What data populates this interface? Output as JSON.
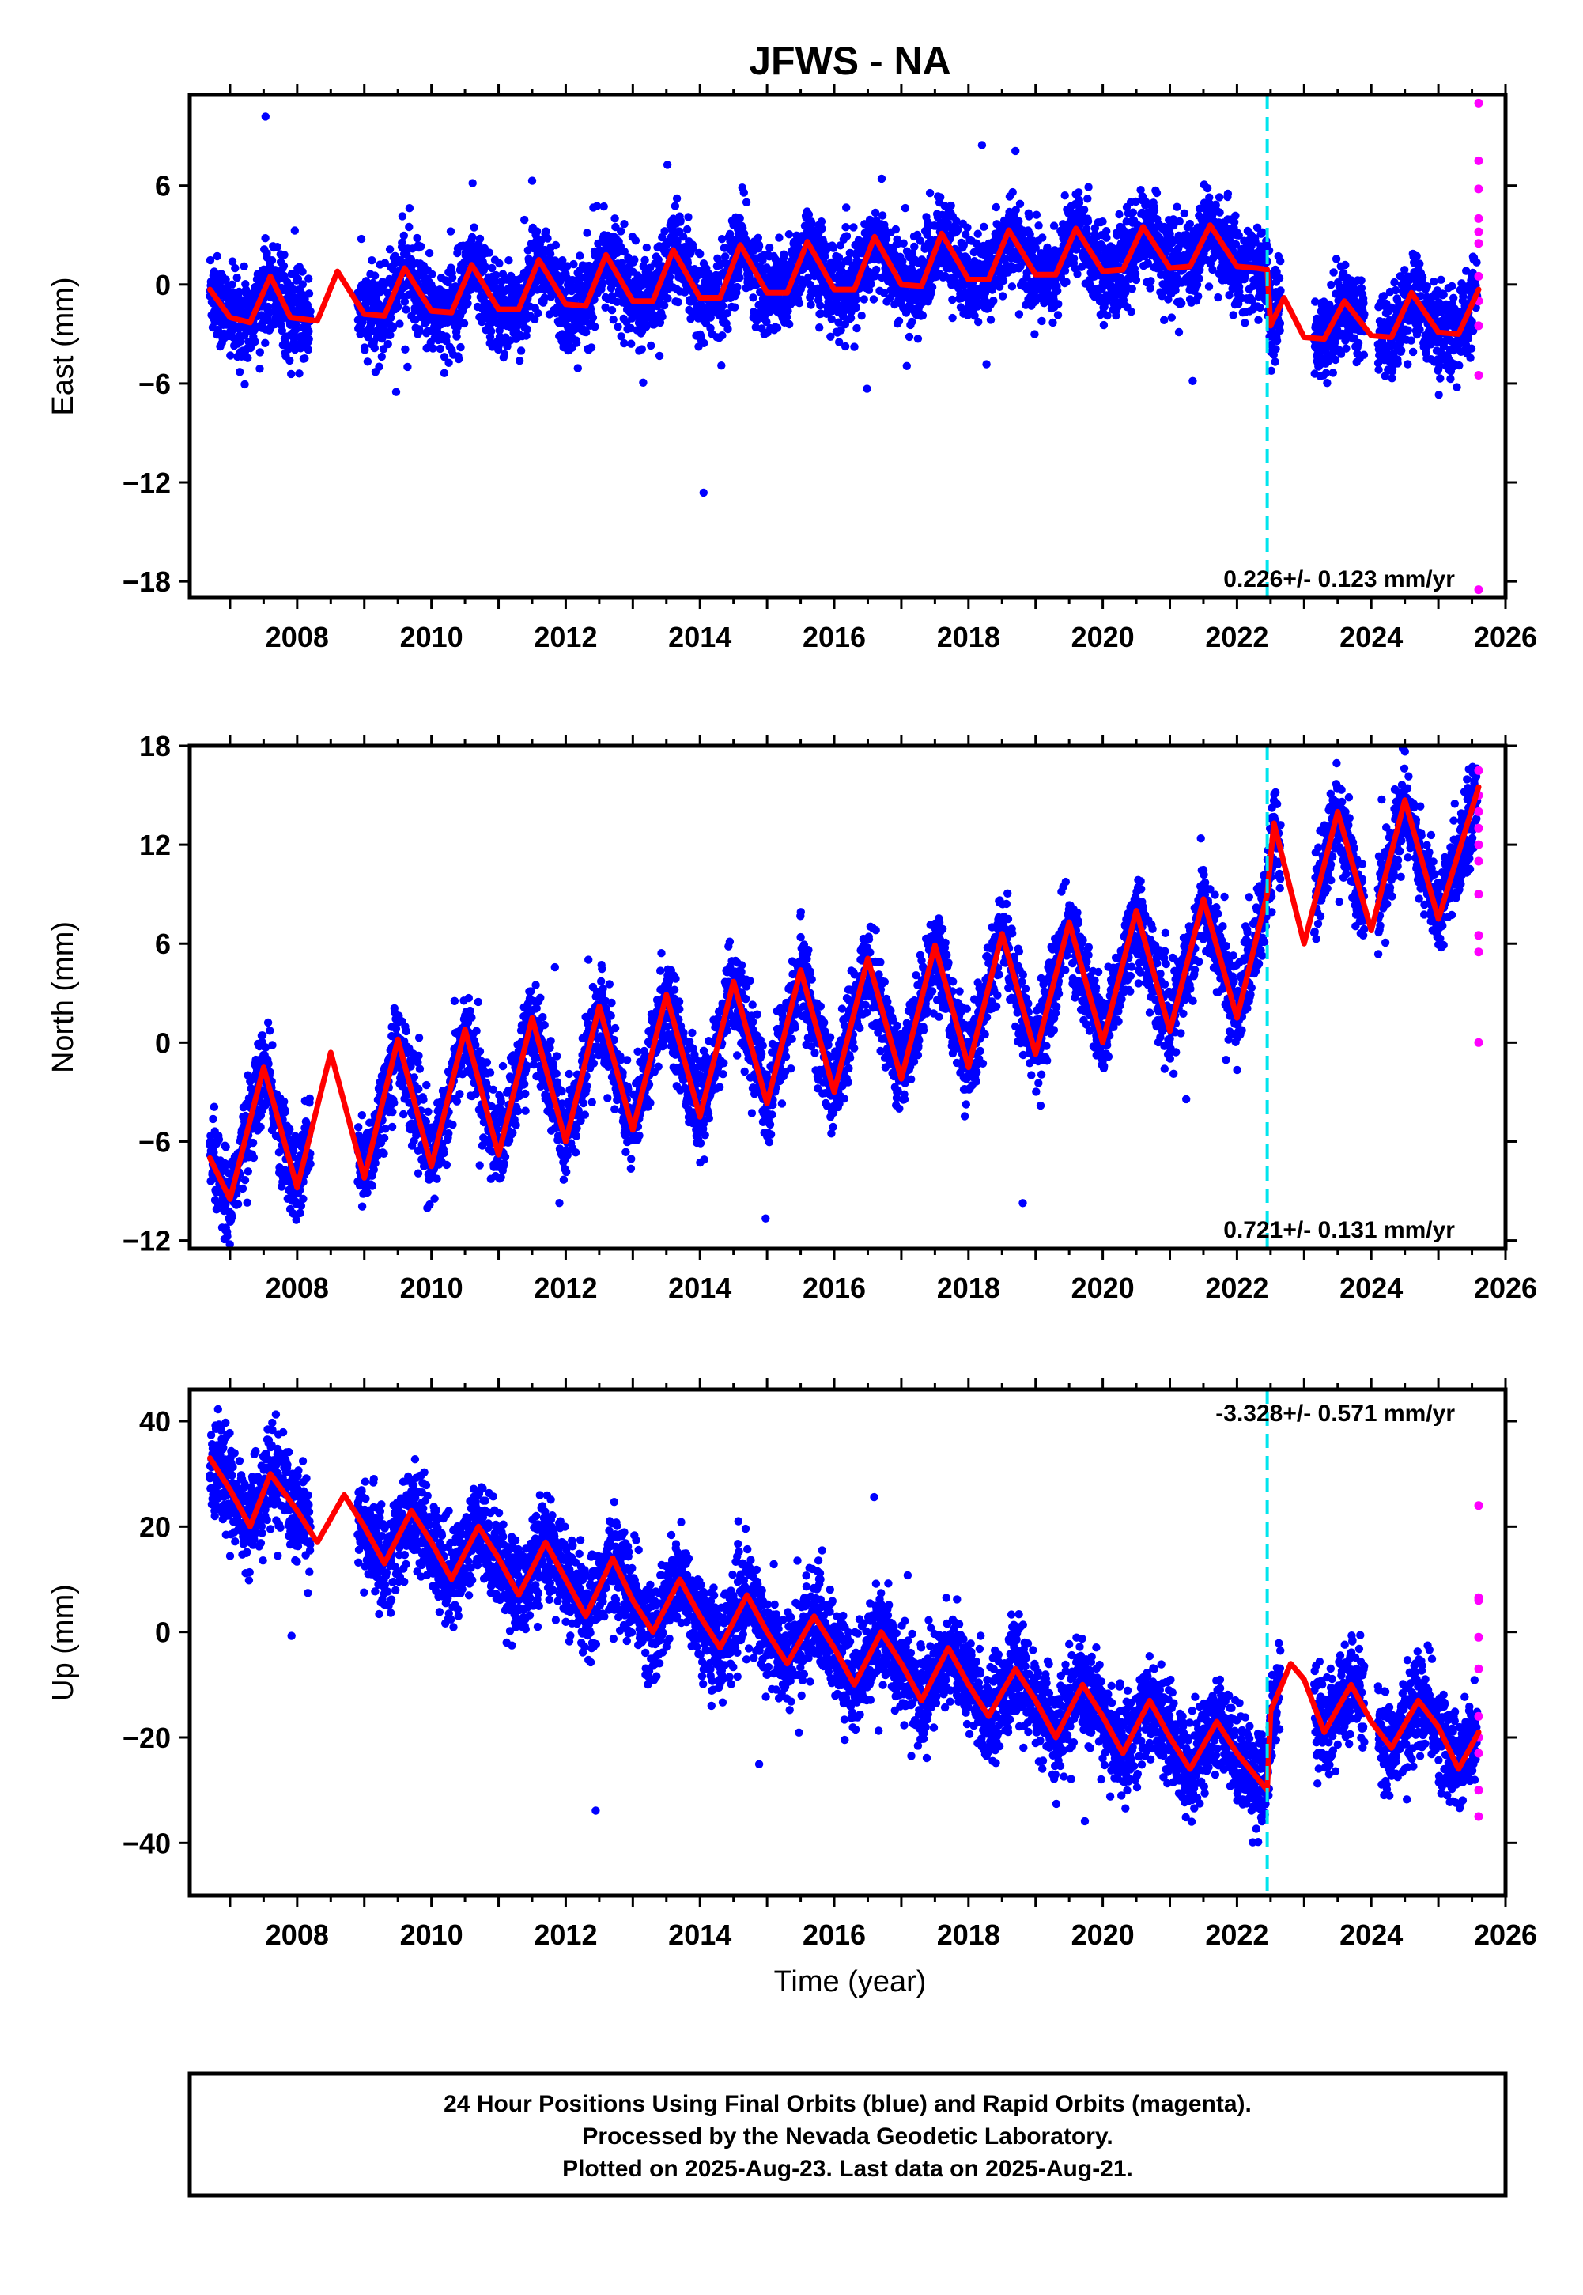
{
  "title": "JFWS - NA",
  "xlabel": "Time (year)",
  "colors": {
    "final": "#0000ff",
    "rapid": "#ff00ff",
    "model": "#ff0000",
    "offset": "#00e5ee"
  },
  "chart_data": [
    {
      "type": "scatter",
      "component": "east",
      "ylabel": "East (mm)",
      "xlim": [
        2006.4,
        2026.0
      ],
      "ylim": [
        -19,
        11.5
      ],
      "yticks": [
        6,
        0,
        -6,
        -12,
        -18
      ],
      "xticks": [
        2008,
        2010,
        2012,
        2014,
        2016,
        2018,
        2020,
        2022,
        2024,
        2026
      ],
      "rate_label": "0.226+/- 0.123 mm/yr",
      "offset_line_x": 2022.45,
      "data_gaps": [
        [
          2008.2,
          2008.9
        ],
        [
          2022.65,
          2023.15
        ],
        [
          2023.9,
          2024.1
        ]
      ],
      "model_series": {
        "name": "",
        "x": [
          2006.7,
          2007.0,
          2007.3,
          2007.6,
          2007.9,
          2008.3,
          2008.6,
          2009.0,
          2009.3,
          2009.6,
          2010.0,
          2010.3,
          2010.6,
          2011.0,
          2011.3,
          2011.6,
          2012.0,
          2012.3,
          2012.6,
          2013.0,
          2013.3,
          2013.6,
          2014.0,
          2014.3,
          2014.6,
          2015.0,
          2015.3,
          2015.6,
          2016.0,
          2016.3,
          2016.6,
          2017.0,
          2017.3,
          2017.6,
          2018.0,
          2018.3,
          2018.6,
          2019.0,
          2019.3,
          2019.6,
          2020.0,
          2020.3,
          2020.6,
          2021.0,
          2021.3,
          2021.6,
          2022.0,
          2022.3,
          2022.45,
          2022.5,
          2022.7,
          2023.0,
          2023.3,
          2023.6,
          2024.0,
          2024.3,
          2024.6,
          2025.0,
          2025.3,
          2025.6
        ],
        "y": [
          -0.3,
          -2.0,
          -2.3,
          0.5,
          -2.0,
          -2.2,
          0.8,
          -1.8,
          -1.9,
          1.0,
          -1.6,
          -1.7,
          1.2,
          -1.5,
          -1.5,
          1.5,
          -1.2,
          -1.3,
          1.8,
          -1.0,
          -1.0,
          2.1,
          -0.8,
          -0.8,
          2.4,
          -0.5,
          -0.5,
          2.6,
          -0.3,
          -0.3,
          2.9,
          0.0,
          -0.1,
          3.1,
          0.3,
          0.3,
          3.3,
          0.6,
          0.6,
          3.4,
          0.8,
          0.9,
          3.5,
          1.0,
          1.1,
          3.6,
          1.1,
          1.0,
          0.9,
          -2.5,
          -0.8,
          -3.2,
          -3.3,
          -1.0,
          -3.1,
          -3.2,
          -0.5,
          -2.9,
          -3.0,
          -0.3
        ]
      },
      "rapid_points": {
        "x": [
          2025.6,
          2025.6,
          2025.6,
          2025.6,
          2025.6,
          2025.6,
          2025.6,
          2025.6,
          2025.6,
          2025.6,
          2025.6
        ],
        "y": [
          11,
          7.5,
          5.8,
          4.0,
          2.5,
          0.5,
          -1.0,
          -2.5,
          -5.5,
          -18.5,
          3.2
        ]
      }
    },
    {
      "type": "scatter",
      "component": "north",
      "ylabel": "North (mm)",
      "xlim": [
        2006.4,
        2026.0
      ],
      "ylim": [
        -12.5,
        18
      ],
      "yticks": [
        18,
        12,
        6,
        0,
        -6,
        -12
      ],
      "xticks": [
        2008,
        2010,
        2012,
        2014,
        2016,
        2018,
        2020,
        2022,
        2024,
        2026
      ],
      "rate_label": "0.721+/- 0.131 mm/yr",
      "offset_line_x": 2022.45,
      "data_gaps": [
        [
          2008.2,
          2008.9
        ],
        [
          2022.65,
          2023.15
        ],
        [
          2023.9,
          2024.1
        ]
      ],
      "model_series": {
        "name": "",
        "x": [
          2006.7,
          2007.0,
          2007.5,
          2008.0,
          2008.5,
          2009.0,
          2009.5,
          2010.0,
          2010.5,
          2011.0,
          2011.5,
          2012.0,
          2012.5,
          2013.0,
          2013.5,
          2014.0,
          2014.5,
          2015.0,
          2015.5,
          2016.0,
          2016.5,
          2017.0,
          2017.5,
          2018.0,
          2018.5,
          2019.0,
          2019.5,
          2020.0,
          2020.5,
          2021.0,
          2021.5,
          2022.0,
          2022.45,
          2022.55,
          2023.0,
          2023.5,
          2024.0,
          2024.5,
          2025.0,
          2025.6
        ],
        "y": [
          -7.0,
          -9.5,
          -1.5,
          -8.8,
          -0.6,
          -8.2,
          0.2,
          -7.5,
          0.8,
          -6.8,
          1.5,
          -6.0,
          2.2,
          -5.3,
          2.9,
          -4.5,
          3.7,
          -3.7,
          4.4,
          -3.0,
          5.1,
          -2.2,
          5.9,
          -1.5,
          6.6,
          -0.7,
          7.3,
          0.0,
          8.0,
          0.7,
          8.7,
          1.5,
          9.0,
          13.3,
          6.0,
          14.0,
          6.8,
          14.7,
          7.5,
          15.5
        ]
      },
      "rapid_points": {
        "x": [
          2025.6,
          2025.6,
          2025.6,
          2025.6,
          2025.6,
          2025.6,
          2025.6,
          2025.6,
          2025.6,
          2025.6
        ],
        "y": [
          16.5,
          15.0,
          13.0,
          12.0,
          11.0,
          9.0,
          6.5,
          5.5,
          0.0,
          14.0
        ]
      }
    },
    {
      "type": "scatter",
      "component": "up",
      "ylabel": "Up (mm)",
      "xlim": [
        2006.4,
        2026.0
      ],
      "ylim": [
        -50,
        46
      ],
      "yticks": [
        40,
        20,
        0,
        -20,
        -40
      ],
      "xticks": [
        2008,
        2010,
        2012,
        2014,
        2016,
        2018,
        2020,
        2022,
        2024,
        2026
      ],
      "rate_label": "-3.328+/- 0.571 mm/yr",
      "offset_line_x": 2022.45,
      "data_gaps": [
        [
          2008.2,
          2008.9
        ],
        [
          2022.65,
          2023.15
        ],
        [
          2023.9,
          2024.1
        ]
      ],
      "model_series": {
        "name": "",
        "x": [
          2006.7,
          2007.0,
          2007.3,
          2007.6,
          2008.0,
          2008.3,
          2008.7,
          2009.0,
          2009.3,
          2009.7,
          2010.0,
          2010.3,
          2010.7,
          2011.0,
          2011.3,
          2011.7,
          2012.0,
          2012.3,
          2012.7,
          2013.0,
          2013.3,
          2013.7,
          2014.0,
          2014.3,
          2014.7,
          2015.0,
          2015.3,
          2015.7,
          2016.0,
          2016.3,
          2016.7,
          2017.0,
          2017.3,
          2017.7,
          2018.0,
          2018.3,
          2018.7,
          2019.0,
          2019.3,
          2019.7,
          2020.0,
          2020.3,
          2020.7,
          2021.0,
          2021.3,
          2021.7,
          2022.0,
          2022.45,
          2022.5,
          2022.8,
          2023.0,
          2023.3,
          2023.7,
          2024.0,
          2024.3,
          2024.7,
          2025.0,
          2025.3,
          2025.6
        ],
        "y": [
          33,
          27,
          20,
          30,
          23,
          17,
          26,
          20,
          13,
          23,
          17,
          10,
          20,
          14,
          7,
          17,
          10,
          3,
          14,
          6,
          0,
          10,
          3,
          -3,
          7,
          0,
          -6,
          3,
          -3,
          -10,
          0,
          -6,
          -13,
          -3,
          -10,
          -16,
          -7,
          -13,
          -20,
          -10,
          -16,
          -23,
          -13,
          -20,
          -26,
          -17,
          -23,
          -30,
          -15,
          -6,
          -9,
          -19,
          -10,
          -17,
          -22,
          -13,
          -18,
          -26,
          -19
        ]
      },
      "rapid_points": {
        "x": [
          2025.6,
          2025.6,
          2025.6,
          2025.6,
          2025.6,
          2025.6,
          2025.6,
          2025.6,
          2025.6,
          2025.6
        ],
        "y": [
          24,
          6.5,
          6.0,
          -1.0,
          -7.0,
          -16,
          -20,
          -23,
          -30,
          -35
        ]
      }
    }
  ],
  "footer": {
    "line1": "24 Hour Positions Using Final Orbits (blue) and Rapid Orbits (magenta).",
    "line2": "Processed by the Nevada Geodetic Laboratory.",
    "line3": "Plotted on 2025-Aug-23. Last data on 2025-Aug-21."
  }
}
